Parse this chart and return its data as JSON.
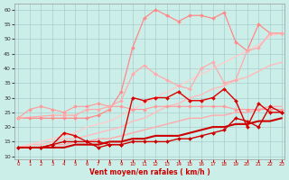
{
  "xlabel": "Vent moyen/en rafales ( km/h )",
  "bg_color": "#cceee8",
  "grid_color": "#aacccc",
  "xlim": [
    -0.3,
    23.3
  ],
  "ylim": [
    9,
    62
  ],
  "yticks": [
    10,
    15,
    20,
    25,
    30,
    35,
    40,
    45,
    50,
    55,
    60
  ],
  "xticks": [
    0,
    1,
    2,
    3,
    4,
    5,
    6,
    7,
    8,
    9,
    10,
    11,
    12,
    13,
    14,
    15,
    16,
    17,
    18,
    19,
    20,
    21,
    22,
    23
  ],
  "lines": [
    {
      "x": [
        0,
        1,
        2,
        3,
        4,
        5,
        6,
        7,
        8,
        9,
        10,
        11,
        12,
        13,
        14,
        15,
        16,
        17,
        18,
        19,
        20,
        21,
        22,
        23
      ],
      "y": [
        13,
        13,
        13,
        14,
        14,
        15,
        15,
        16,
        16,
        17,
        18,
        19,
        20,
        21,
        22,
        23,
        23,
        24,
        24,
        25,
        25,
        26,
        27,
        27
      ],
      "color": "#ffaaaa",
      "marker": null,
      "ms": 0,
      "lw": 1.0
    },
    {
      "x": [
        0,
        1,
        2,
        3,
        4,
        5,
        6,
        7,
        8,
        9,
        10,
        11,
        12,
        13,
        14,
        15,
        16,
        17,
        18,
        19,
        20,
        21,
        22,
        23
      ],
      "y": [
        13,
        14,
        14,
        15,
        16,
        16,
        17,
        18,
        19,
        20,
        22,
        23,
        25,
        27,
        28,
        30,
        31,
        33,
        34,
        36,
        37,
        39,
        41,
        42
      ],
      "color": "#ffbbbb",
      "marker": null,
      "ms": 0,
      "lw": 1.0
    },
    {
      "x": [
        0,
        1,
        2,
        3,
        4,
        5,
        6,
        7,
        8,
        9,
        10,
        11,
        12,
        13,
        14,
        15,
        16,
        17,
        18,
        19,
        20,
        21,
        22,
        23
      ],
      "y": [
        13,
        14,
        15,
        16,
        17,
        18,
        20,
        21,
        22,
        24,
        26,
        28,
        30,
        32,
        34,
        36,
        38,
        40,
        42,
        44,
        46,
        48,
        51,
        52
      ],
      "color": "#ffcccc",
      "marker": null,
      "ms": 0,
      "lw": 1.0
    },
    {
      "x": [
        0,
        1,
        2,
        3,
        4,
        5,
        6,
        7,
        8,
        9,
        10,
        11,
        12,
        13,
        14,
        15,
        16,
        17,
        18,
        19,
        20,
        21,
        22,
        23
      ],
      "y": [
        23,
        26,
        27,
        26,
        25,
        27,
        27,
        28,
        27,
        27,
        26,
        26,
        27,
        27,
        27,
        27,
        27,
        27,
        27,
        26,
        26,
        26,
        26,
        26
      ],
      "color": "#ff9999",
      "marker": "D",
      "ms": 2.0,
      "lw": 0.8
    },
    {
      "x": [
        0,
        1,
        2,
        3,
        4,
        5,
        6,
        7,
        8,
        9,
        10,
        11,
        12,
        13,
        14,
        15,
        16,
        17,
        18,
        19,
        20,
        21,
        22,
        23
      ],
      "y": [
        23,
        23,
        23,
        23,
        23,
        23,
        23,
        24,
        26,
        32,
        47,
        57,
        60,
        58,
        56,
        58,
        58,
        57,
        59,
        49,
        46,
        55,
        52,
        52
      ],
      "color": "#ff8888",
      "marker": "D",
      "ms": 2.0,
      "lw": 0.9
    },
    {
      "x": [
        0,
        3,
        4,
        5,
        6,
        7,
        8,
        9,
        10,
        11,
        12,
        13,
        14,
        15,
        16,
        17,
        18,
        19,
        20,
        21,
        22,
        23
      ],
      "y": [
        23,
        24,
        24,
        24,
        26,
        26,
        27,
        29,
        38,
        41,
        38,
        36,
        34,
        33,
        40,
        42,
        35,
        36,
        46,
        47,
        52,
        52
      ],
      "color": "#ffaaaa",
      "marker": "D",
      "ms": 2.0,
      "lw": 0.9
    },
    {
      "x": [
        0,
        1,
        2,
        3,
        4,
        5,
        6,
        7,
        8,
        9,
        10,
        11,
        12,
        13,
        14,
        15,
        16,
        17,
        18,
        19,
        20,
        21,
        22,
        23
      ],
      "y": [
        13,
        13,
        13,
        14,
        18,
        17,
        15,
        15,
        14,
        14,
        30,
        29,
        30,
        30,
        32,
        29,
        29,
        30,
        33,
        29,
        20,
        28,
        25,
        25
      ],
      "color": "#dd0000",
      "marker": "D",
      "ms": 2.0,
      "lw": 1.0
    },
    {
      "x": [
        0,
        1,
        2,
        3,
        4,
        5,
        6,
        7,
        8,
        9,
        10,
        11,
        12,
        13,
        14,
        15,
        16,
        17,
        18,
        19,
        20,
        21,
        22,
        23
      ],
      "y": [
        13,
        13,
        13,
        13,
        13,
        14,
        14,
        14,
        15,
        15,
        16,
        16,
        17,
        17,
        17,
        18,
        19,
        20,
        20,
        21,
        21,
        22,
        22,
        23
      ],
      "color": "#cc0000",
      "marker": null,
      "ms": 0,
      "lw": 1.5
    },
    {
      "x": [
        0,
        1,
        2,
        3,
        4,
        5,
        6,
        7,
        8,
        9,
        10,
        11,
        12,
        13,
        14,
        15,
        16,
        17,
        18,
        19,
        20,
        21,
        22,
        23
      ],
      "y": [
        13,
        13,
        13,
        14,
        15,
        15,
        15,
        13,
        14,
        14,
        15,
        15,
        15,
        15,
        16,
        16,
        17,
        18,
        19,
        23,
        22,
        20,
        27,
        25
      ],
      "color": "#cc0000",
      "marker": "D",
      "ms": 2.0,
      "lw": 1.0
    }
  ]
}
